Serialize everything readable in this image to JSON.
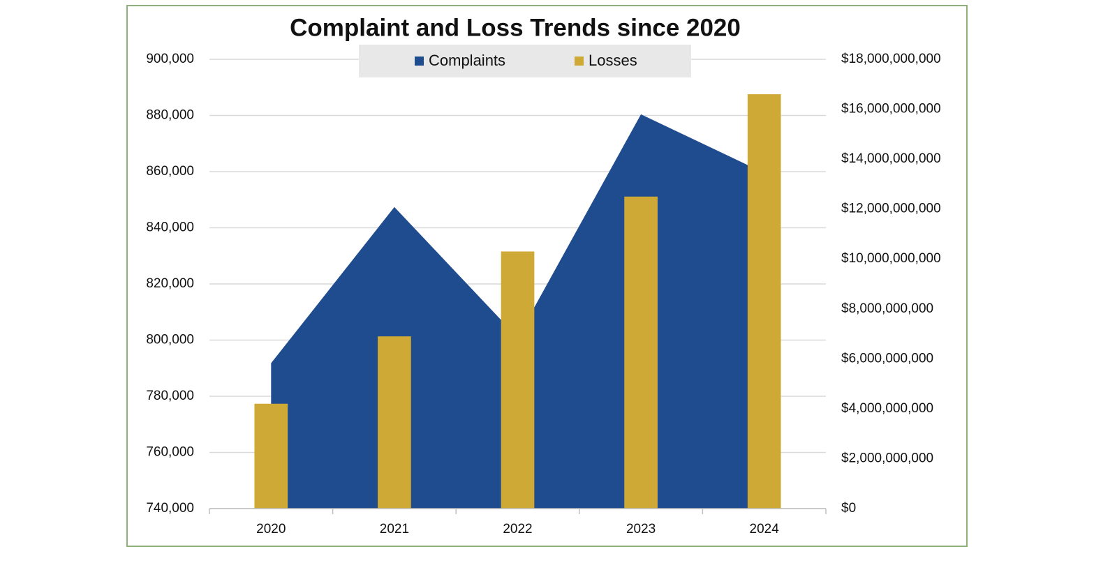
{
  "chart_data": {
    "type": "combo",
    "title": "Complaint and Loss Trends since 2020",
    "categories": [
      "2020",
      "2021",
      "2022",
      "2023",
      "2024"
    ],
    "series": [
      {
        "name": "Complaints",
        "type": "area",
        "color": "#1f4b8f",
        "axis": "y",
        "values": [
          791790,
          847376,
          800944,
          880418,
          859532
        ]
      },
      {
        "name": "Losses",
        "type": "bar",
        "color": "#cfa935",
        "axis": "y2",
        "values": [
          4200000000,
          6900000000,
          10300000000,
          12500000000,
          16600000000
        ]
      }
    ],
    "ylim": [
      740000,
      900000
    ],
    "yticks": [
      {
        "value": 740000,
        "label": "740,000"
      },
      {
        "value": 760000,
        "label": "760,000"
      },
      {
        "value": 780000,
        "label": "780,000"
      },
      {
        "value": 800000,
        "label": "800,000"
      },
      {
        "value": 820000,
        "label": "820,000"
      },
      {
        "value": 840000,
        "label": "840,000"
      },
      {
        "value": 860000,
        "label": "860,000"
      },
      {
        "value": 880000,
        "label": "880,000"
      },
      {
        "value": 900000,
        "label": "900,000"
      }
    ],
    "y2lim": [
      0,
      18000000000
    ],
    "y2ticks": [
      {
        "value": 0,
        "label": "$0"
      },
      {
        "value": 2000000000,
        "label": "$2,000,000,000"
      },
      {
        "value": 4000000000,
        "label": "$4,000,000,000"
      },
      {
        "value": 6000000000,
        "label": "$6,000,000,000"
      },
      {
        "value": 8000000000,
        "label": "$8,000,000,000"
      },
      {
        "value": 10000000000,
        "label": "$10,000,000,000"
      },
      {
        "value": 12000000000,
        "label": "$12,000,000,000"
      },
      {
        "value": 14000000000,
        "label": "$14,000,000,000"
      },
      {
        "value": 16000000000,
        "label": "$16,000,000,000"
      },
      {
        "value": 18000000000,
        "label": "$18,000,000,000"
      }
    ],
    "grid": true,
    "legend": "top"
  }
}
